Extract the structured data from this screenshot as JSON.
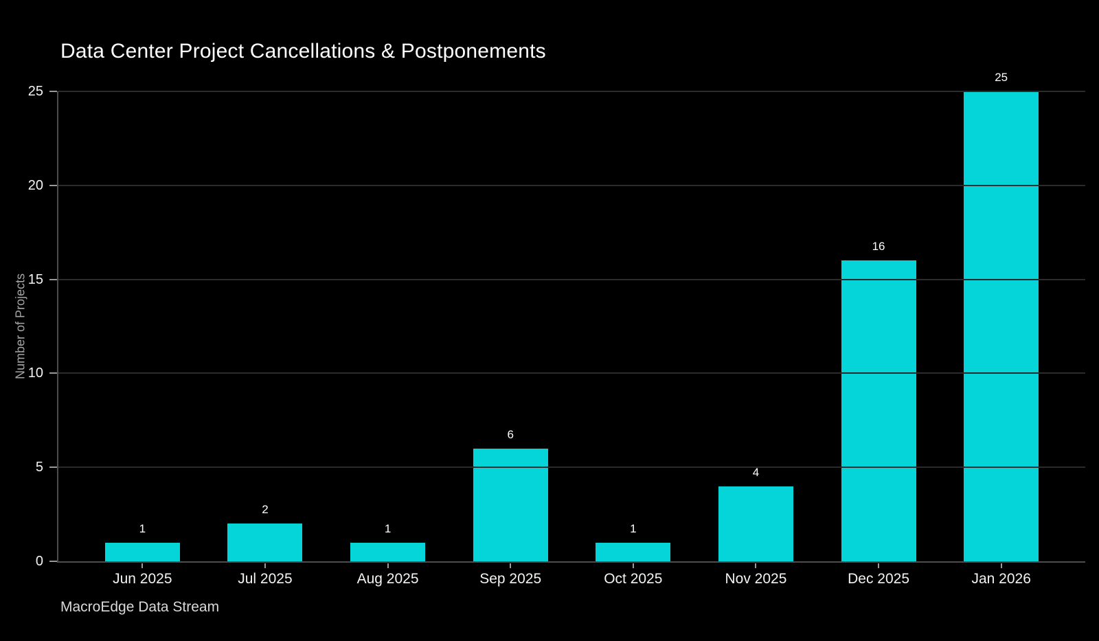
{
  "title": "Data Center Project Cancellations & Postponements",
  "footer": "MacroEdge Data Stream",
  "chart_data": {
    "type": "bar",
    "title": "Data Center Project Cancellations & Postponements",
    "categories": [
      "Jun 2025",
      "Jul 2025",
      "Aug 2025",
      "Sep 2025",
      "Oct 2025",
      "Nov 2025",
      "Dec 2025",
      "Jan 2026"
    ],
    "values": [
      1,
      2,
      1,
      6,
      1,
      4,
      16,
      25
    ],
    "xlabel": "",
    "ylabel": "Number of Projects",
    "ylim": [
      0,
      25
    ],
    "yticks": [
      0,
      5,
      10,
      15,
      20,
      25
    ],
    "grid": true,
    "legend": "none",
    "bar_labels_shown": true,
    "source_caption": "MacroEdge Data Stream",
    "colors": {
      "background": "#000000",
      "bar": "#05d5d8",
      "gridline": "#2b2b2b",
      "axis_line": "#4d4d4d",
      "tick_mark": "#999999",
      "tick_label": "#f2f2f2",
      "title_text": "#ffffff",
      "axis_title_text": "#a6a6a6",
      "caption_text": "#d9d9d9"
    }
  }
}
